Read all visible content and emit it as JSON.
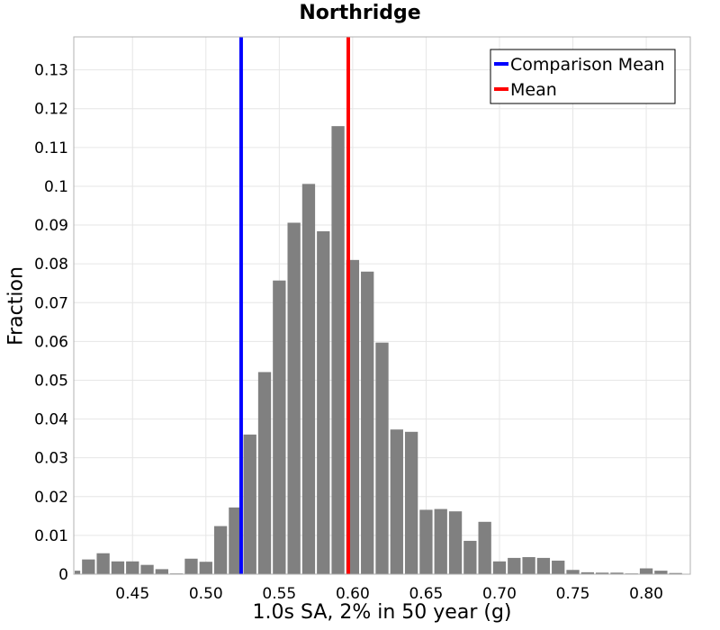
{
  "chart_data": {
    "type": "bar",
    "title": "Northridge",
    "xlabel": "1.0s SA, 2% in 50 year (g)",
    "ylabel": "Fraction",
    "xlim": [
      0.41,
      0.83
    ],
    "ylim": [
      0,
      0.1385
    ],
    "grid": true,
    "x_ticks": [
      "0.45",
      "0.50",
      "0.55",
      "0.60",
      "0.65",
      "0.70",
      "0.75",
      "0.80"
    ],
    "x_tick_values": [
      0.45,
      0.5,
      0.55,
      0.6,
      0.65,
      0.7,
      0.75,
      0.8
    ],
    "y_ticks": [
      "0",
      "0.01",
      "0.02",
      "0.03",
      "0.04",
      "0.05",
      "0.06",
      "0.07",
      "0.08",
      "0.09",
      "0.1",
      "0.11",
      "0.12",
      "0.13"
    ],
    "y_tick_values": [
      0,
      0.01,
      0.02,
      0.03,
      0.04,
      0.05,
      0.06,
      0.07,
      0.08,
      0.09,
      0.1,
      0.11,
      0.12,
      0.13
    ],
    "bin_width": 0.01,
    "bin_centers": [
      0.41,
      0.42,
      0.43,
      0.44,
      0.45,
      0.46,
      0.47,
      0.48,
      0.49,
      0.5,
      0.51,
      0.52,
      0.53,
      0.54,
      0.55,
      0.56,
      0.57,
      0.58,
      0.59,
      0.6,
      0.61,
      0.62,
      0.63,
      0.64,
      0.65,
      0.66,
      0.67,
      0.68,
      0.69,
      0.7,
      0.71,
      0.72,
      0.73,
      0.74,
      0.75,
      0.76,
      0.77,
      0.78,
      0.79,
      0.8,
      0.81,
      0.82
    ],
    "values": [
      0.0009,
      0.0038,
      0.0054,
      0.0033,
      0.0033,
      0.0024,
      0.0013,
      0.0002,
      0.004,
      0.0032,
      0.0124,
      0.0172,
      0.036,
      0.0521,
      0.0757,
      0.0906,
      0.1006,
      0.0884,
      0.1155,
      0.081,
      0.078,
      0.0597,
      0.0373,
      0.0367,
      0.0166,
      0.0168,
      0.0162,
      0.0086,
      0.0135,
      0.0033,
      0.0042,
      0.0044,
      0.0042,
      0.0035,
      0.0011,
      0.0005,
      0.0004,
      0.0004,
      0.0002,
      0.0015,
      0.0009,
      0.0003
    ],
    "bar_color": "#808080",
    "vlines": [
      {
        "name": "Comparison Mean",
        "x": 0.524,
        "color": "#0000ff"
      },
      {
        "name": "Mean",
        "x": 0.597,
        "color": "#ff0000"
      }
    ],
    "legend_position": "top-right"
  }
}
